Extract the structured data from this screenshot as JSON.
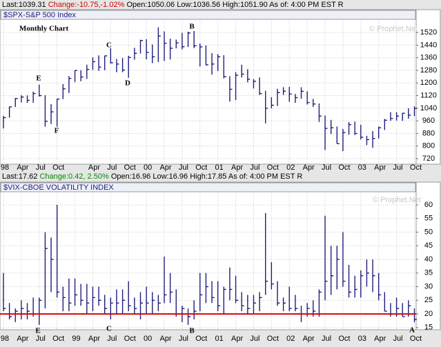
{
  "header_top": {
    "last": "Last:1039.31",
    "change": "Change:-10.75,-1.02%",
    "open": "Open:1050.06",
    "low": "Low:1036.56",
    "high": "High:1051.90",
    "as_of": "As of: 4:00 PM EST R"
  },
  "header_bottom": {
    "last": "Last:17.62",
    "change": "Change:0.42, 2.50%",
    "open": "Open:16.96",
    "low": "Low:16.96",
    "high": "High:17.85",
    "as_of": "As of: 4:00 PM EST R"
  },
  "chart_data": [
    {
      "type": "ohlc",
      "title": "$SPX-S&P 500 Index",
      "subtitle": "Monthly Chart",
      "watermark": "© Prophet.Net",
      "color": "#1c1c7c",
      "annotations": [
        "E",
        "F",
        "C",
        "D",
        "B"
      ],
      "categories": [
        "98",
        null,
        null,
        "Apr",
        null,
        null,
        "Jul",
        null,
        null,
        "Oct",
        null,
        null,
        null,
        null,
        null,
        "Apr",
        null,
        null,
        "Jul",
        null,
        null,
        "Oct",
        null,
        null,
        "00",
        null,
        null,
        "Apr",
        null,
        null,
        "Jul",
        null,
        null,
        "Oct",
        null,
        null,
        "01",
        null,
        null,
        "Apr",
        null,
        null,
        "Jul",
        null,
        null,
        "Oct",
        null,
        null,
        "02",
        null,
        null,
        "Apr",
        null,
        null,
        "Jul",
        null,
        null,
        "Oct",
        null,
        null,
        "03",
        null,
        null,
        "Apr",
        null,
        null,
        "Jul",
        null,
        null,
        "Oct"
      ],
      "series": [
        {
          "name": "High",
          "values": [
            992,
            1050,
            1105,
            1123,
            1122,
            1145,
            1190,
            1122,
            1066,
            1100,
            1193,
            1244,
            1280,
            1282,
            1316,
            1362,
            1375,
            1373,
            1420,
            1352,
            1358,
            1373,
            1423,
            1474,
            1478,
            1444,
            1553,
            1527,
            1481,
            1475,
            1518,
            1525,
            1530,
            1450,
            1438,
            1389,
            1383,
            1376,
            1243,
            1269,
            1316,
            1287,
            1225,
            1235,
            1150,
            1110,
            1163,
            1173,
            1176,
            1130,
            1173,
            1147,
            1099,
            1070,
            994,
            966,
            924,
            908,
            952,
            955,
            935,
            865,
            895,
            924,
            972,
            1015,
            1015,
            1011,
            1040,
            1052
          ]
        },
        {
          "name": "Low",
          "values": [
            912,
            980,
            1048,
            1076,
            1074,
            1074,
            1114,
            923,
            940,
            923,
            1098,
            1137,
            1205,
            1211,
            1226,
            1283,
            1277,
            1281,
            1323,
            1268,
            1268,
            1233,
            1348,
            1387,
            1350,
            1326,
            1333,
            1339,
            1349,
            1420,
            1413,
            1428,
            1421,
            1305,
            1312,
            1253,
            1275,
            1229,
            1082,
            1091,
            1235,
            1204,
            1165,
            1124,
            944,
            1039,
            1054,
            1124,
            1081,
            1074,
            1100,
            1063,
            1048,
            953,
            775,
            876,
            815,
            768,
            872,
            870,
            841,
            806,
            789,
            848,
            902,
            960,
            962,
            960,
            974,
            990
          ]
        },
        {
          "name": "Close",
          "values": [
            980,
            1049,
            1101,
            1111,
            1090,
            1133,
            1120,
            957,
            1017,
            1098,
            1163,
            1229,
            1279,
            1238,
            1286,
            1335,
            1301,
            1372,
            1328,
            1320,
            1282,
            1362,
            1388,
            1469,
            1394,
            1366,
            1498,
            1452,
            1420,
            1454,
            1430,
            1517,
            1436,
            1429,
            1315,
            1320,
            1366,
            1240,
            1160,
            1249,
            1256,
            1224,
            1211,
            1133,
            1040,
            1059,
            1139,
            1148,
            1130,
            1107,
            1147,
            1076,
            1067,
            990,
            912,
            916,
            815,
            886,
            936,
            880,
            856,
            841,
            848,
            916,
            964,
            975,
            990,
            1008,
            996,
            1039
          ]
        }
      ],
      "ylim": [
        685,
        1595
      ],
      "yticks": [
        720,
        800,
        880,
        960,
        1040,
        1120,
        1200,
        1280,
        1360,
        1440,
        1520
      ],
      "grid": true
    },
    {
      "type": "ohlc",
      "title": "$VIX-CBOE VOLATILITY INDEX",
      "watermark": "© Prophet.Net",
      "color": "#1c1c7c",
      "annotations": [
        "E",
        "C",
        "B",
        "A"
      ],
      "reference_line": {
        "value": 20,
        "color": "#e00000"
      },
      "categories": [
        "98",
        null,
        null,
        "Apr",
        null,
        null,
        "Jul",
        null,
        null,
        "Oct",
        null,
        null,
        "99",
        null,
        null,
        "Apr",
        null,
        null,
        "Jul",
        null,
        null,
        "Oct",
        null,
        null,
        "00",
        null,
        null,
        "Apr",
        null,
        null,
        "Jul",
        null,
        null,
        "Oct",
        null,
        null,
        "01",
        null,
        null,
        "Apr",
        null,
        null,
        "Jul",
        null,
        null,
        "Oct",
        null,
        null,
        "02",
        null,
        null,
        "Apr",
        null,
        null,
        "Jul",
        null,
        null,
        "Oct",
        null,
        null,
        "03",
        null,
        null,
        "Apr",
        null,
        null,
        "Jul",
        null,
        null,
        "Oct"
      ],
      "series": [
        {
          "name": "High",
          "values": [
            35,
            24,
            22,
            25,
            24,
            26,
            26,
            50,
            48,
            60,
            30,
            33,
            33,
            31,
            31,
            30,
            30,
            27,
            26,
            29,
            29,
            32,
            26,
            28,
            30,
            28,
            27,
            41,
            35,
            29,
            23,
            22,
            25,
            35,
            35,
            32,
            32,
            30,
            37,
            34,
            28,
            27,
            27,
            28,
            57,
            39,
            32,
            26,
            30,
            27,
            23,
            24,
            25,
            29,
            56,
            45,
            45,
            50,
            38,
            34,
            36,
            40,
            40,
            35,
            28,
            24,
            26,
            24,
            25,
            22
          ]
        },
        {
          "name": "Low",
          "values": [
            21,
            18,
            17,
            18,
            18,
            19,
            16,
            22,
            28,
            26,
            21,
            21,
            23,
            23,
            20,
            21,
            23,
            20,
            18,
            20,
            20,
            21,
            20,
            18,
            20,
            20,
            21,
            24,
            24,
            19,
            17,
            16,
            18,
            21,
            24,
            24,
            21,
            20,
            25,
            24,
            21,
            20,
            20,
            21,
            27,
            29,
            23,
            21,
            21,
            21,
            17,
            19,
            19,
            19,
            25,
            27,
            29,
            30,
            26,
            26,
            26,
            30,
            28,
            25,
            21,
            19,
            19,
            19,
            19,
            17
          ]
        },
        {
          "name": "Close",
          "values": [
            22,
            19,
            21,
            22,
            21,
            20,
            25,
            44,
            40,
            28,
            26,
            24,
            27,
            25,
            24,
            26,
            25,
            22,
            24,
            24,
            25,
            23,
            22,
            24,
            24,
            25,
            24,
            27,
            28,
            20,
            22,
            19,
            21,
            27,
            30,
            26,
            23,
            29,
            29,
            25,
            23,
            22,
            24,
            26,
            32,
            31,
            24,
            24,
            22,
            22,
            20,
            22,
            21,
            28,
            32,
            34,
            40,
            32,
            28,
            29,
            34,
            35,
            34,
            27,
            21,
            20,
            22,
            19,
            23,
            18
          ]
        }
      ],
      "ylim": [
        14.2,
        64.8
      ],
      "yticks": [
        15,
        20,
        25,
        30,
        35,
        40,
        45,
        50,
        55,
        60
      ],
      "grid": true
    }
  ]
}
